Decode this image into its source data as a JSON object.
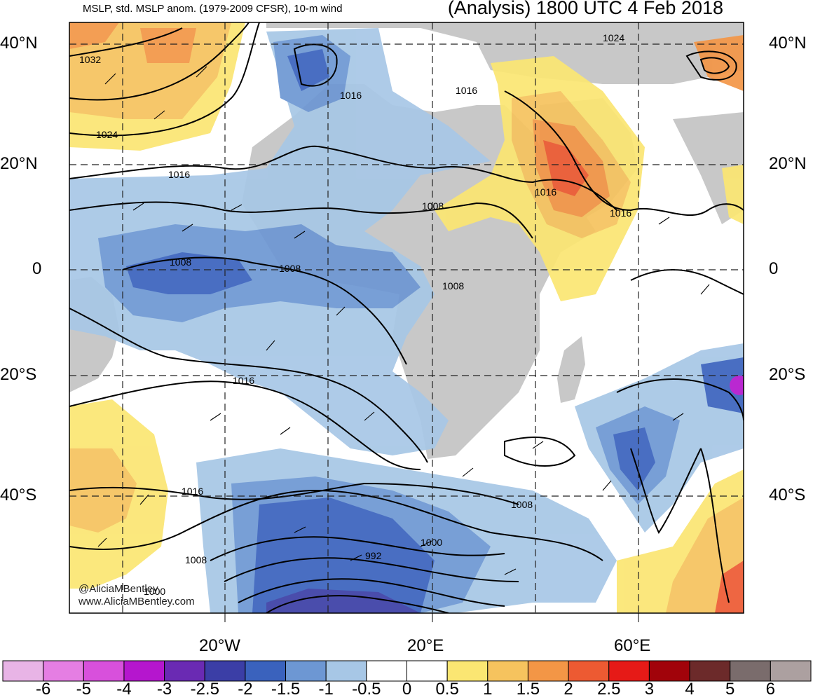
{
  "header": {
    "left_title": "MSLP, std. MSLP anom. (1979-2009 CFSR), 10-m wind",
    "right_title": "(Analysis) 1800 UTC 4 Feb 2018"
  },
  "axes": {
    "lat_labels": [
      "40°N",
      "20°N",
      "0",
      "20°S",
      "40°S"
    ],
    "lon_labels": [
      "20°W",
      "20°E",
      "60°E"
    ]
  },
  "isobar_labels": [
    "1032",
    "1024",
    "1016",
    "1016",
    "1016",
    "1016",
    "1024",
    "1008",
    "1008",
    "1008",
    "1008",
    "1016",
    "1016",
    "1008",
    "1008",
    "1000",
    "992",
    "1000"
  ],
  "credits": {
    "twitter": "@AliciaMBentley",
    "website": "www.AliciaMBentley.com"
  },
  "colorbar": {
    "labels": [
      "-6",
      "-5",
      "-4",
      "-3",
      "-2.5",
      "-2",
      "-1.5",
      "-1",
      "-0.5",
      "0",
      "0.5",
      "1",
      "1.5",
      "2",
      "2.5",
      "3",
      "4",
      "5",
      "6"
    ],
    "colors": [
      "#e8b4e6",
      "#e57ee3",
      "#d850dc",
      "#b516ce",
      "#6a2ab3",
      "#3b3ea6",
      "#3a62bd",
      "#6d97d3",
      "#a7c7e6",
      "#ffffff",
      "#ffffff",
      "#fbe672",
      "#f6c35e",
      "#f39646",
      "#ed5a32",
      "#e61a17",
      "#a1030a",
      "#6c2a2a",
      "#7a6c6c",
      "#aca0a0"
    ]
  },
  "colors": {
    "land": "#c8c8c8",
    "ocean": "#ffffff",
    "isobar": "#000000"
  }
}
